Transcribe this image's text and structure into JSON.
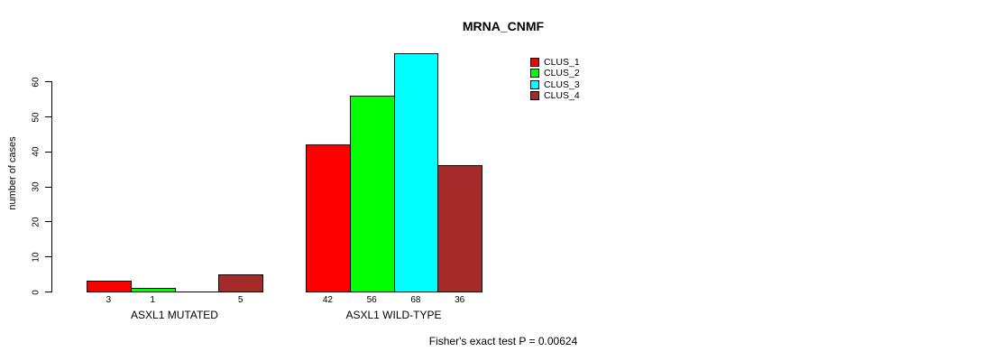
{
  "chart_data": {
    "type": "bar",
    "title": "MRNA_CNMF",
    "ylabel": "number of cases",
    "xlabel": "",
    "ylim": [
      0,
      60
    ],
    "yticks": [
      0,
      10,
      20,
      30,
      40,
      50,
      60
    ],
    "grid": false,
    "legend_position": "top-right",
    "categories": [
      "ASXL1 MUTATED",
      "ASXL1 WILD-TYPE"
    ],
    "series": [
      {
        "name": "CLUS_1",
        "color": "#ff0000",
        "values": [
          3,
          42
        ]
      },
      {
        "name": "CLUS_2",
        "color": "#00ff00",
        "values": [
          1,
          56
        ]
      },
      {
        "name": "CLUS_3",
        "color": "#00ffff",
        "values": [
          0,
          68
        ]
      },
      {
        "name": "CLUS_4",
        "color": "#a52a2a",
        "values": [
          5,
          36
        ]
      }
    ],
    "bar_value_labels": [
      [
        "3",
        "1",
        "",
        "5"
      ],
      [
        "42",
        "56",
        "68",
        "36"
      ]
    ],
    "annotation": "Fisher's exact test P = 0.00624"
  },
  "colors": {
    "background": "#ffffff",
    "axis": "#000000",
    "bar_border": "#000000",
    "text": "#000000"
  }
}
